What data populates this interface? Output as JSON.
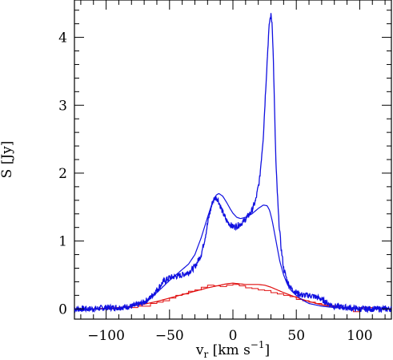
{
  "chart_data": {
    "type": "line",
    "title": "",
    "xlabel": "v_r [km s^-1]",
    "ylabel": "S [Jy]",
    "xlim": [
      -125,
      125
    ],
    "ylim": [
      -0.15,
      4.55
    ],
    "xticks": [
      -100,
      -50,
      0,
      50,
      100
    ],
    "yticks": [
      0,
      1,
      2,
      3,
      4
    ],
    "grid": false,
    "series": [
      {
        "color": "#1010e0",
        "style": "noisy-line",
        "x": [
          -125,
          -110,
          -100,
          -90,
          -80,
          -72,
          -66,
          -60,
          -55,
          -50,
          -45,
          -40,
          -35,
          -30,
          -25,
          -22,
          -19,
          -16,
          -14,
          -12,
          -10,
          -8,
          -5,
          -2,
          0,
          3,
          6,
          9,
          12,
          15,
          18,
          21,
          24,
          26,
          28,
          29,
          30,
          31,
          32,
          33,
          34,
          36,
          38,
          40,
          43,
          46,
          50,
          55,
          60,
          65,
          70,
          75,
          80,
          90,
          100,
          110,
          125
        ],
        "y": [
          0.0,
          0.0,
          0.02,
          0.02,
          0.04,
          0.08,
          0.15,
          0.28,
          0.4,
          0.46,
          0.48,
          0.5,
          0.54,
          0.62,
          0.8,
          1.05,
          1.35,
          1.58,
          1.64,
          1.62,
          1.52,
          1.42,
          1.3,
          1.24,
          1.21,
          1.22,
          1.25,
          1.3,
          1.37,
          1.45,
          1.6,
          1.9,
          2.55,
          3.3,
          4.0,
          4.25,
          4.32,
          4.2,
          3.6,
          2.8,
          2.1,
          1.35,
          0.9,
          0.6,
          0.4,
          0.3,
          0.24,
          0.2,
          0.2,
          0.18,
          0.14,
          0.08,
          0.04,
          0.02,
          0.0,
          0.0,
          0.0
        ]
      },
      {
        "color": "#1010e0",
        "style": "smooth-line",
        "x": [
          -125,
          -100,
          -85,
          -75,
          -70,
          -65,
          -60,
          -55,
          -50,
          -45,
          -40,
          -35,
          -30,
          -25,
          -20,
          -16,
          -13,
          -11,
          -8,
          -5,
          -2,
          0,
          3,
          6,
          10,
          15,
          20,
          24,
          27,
          29,
          31,
          33,
          35,
          37,
          40,
          43,
          46,
          50,
          55,
          60,
          70,
          80,
          90,
          100,
          125
        ],
        "y": [
          0.0,
          0.0,
          0.02,
          0.06,
          0.1,
          0.16,
          0.24,
          0.33,
          0.42,
          0.5,
          0.58,
          0.66,
          0.8,
          1.05,
          1.35,
          1.58,
          1.68,
          1.7,
          1.66,
          1.57,
          1.47,
          1.41,
          1.35,
          1.33,
          1.35,
          1.4,
          1.48,
          1.53,
          1.52,
          1.45,
          1.3,
          1.1,
          0.9,
          0.7,
          0.5,
          0.36,
          0.27,
          0.2,
          0.13,
          0.08,
          0.04,
          0.02,
          0.01,
          0.0,
          0.0
        ]
      },
      {
        "color": "#e01010",
        "style": "smooth-line",
        "x": [
          -125,
          -110,
          -100,
          -90,
          -80,
          -70,
          -60,
          -50,
          -40,
          -30,
          -20,
          -10,
          -5,
          0,
          5,
          10,
          15,
          20,
          25,
          30,
          35,
          40,
          50,
          60,
          70,
          80,
          90,
          100,
          125
        ],
        "y": [
          0.0,
          0.0,
          0.01,
          0.02,
          0.04,
          0.07,
          0.11,
          0.16,
          0.21,
          0.26,
          0.31,
          0.35,
          0.37,
          0.38,
          0.37,
          0.36,
          0.36,
          0.36,
          0.35,
          0.32,
          0.28,
          0.24,
          0.17,
          0.11,
          0.06,
          0.03,
          0.01,
          0.0,
          0.0
        ]
      },
      {
        "color": "#e01010",
        "style": "step",
        "x": [
          -125,
          -110,
          -100,
          -90,
          -80,
          -75,
          -70,
          -65,
          -60,
          -55,
          -50,
          -45,
          -40,
          -35,
          -30,
          -25,
          -20,
          -15,
          -10,
          -5,
          0,
          5,
          10,
          15,
          20,
          25,
          30,
          35,
          40,
          45,
          50,
          55,
          60,
          65,
          70,
          75,
          80,
          85,
          90,
          95,
          100,
          110,
          125
        ],
        "y": [
          0.0,
          0.0,
          0.0,
          0.02,
          0.02,
          0.04,
          0.04,
          0.08,
          0.1,
          0.12,
          0.16,
          0.2,
          0.22,
          0.26,
          0.28,
          0.32,
          0.35,
          0.34,
          0.33,
          0.35,
          0.36,
          0.34,
          0.31,
          0.3,
          0.28,
          0.27,
          0.24,
          0.22,
          0.2,
          0.18,
          0.14,
          0.12,
          0.1,
          0.08,
          0.06,
          0.05,
          0.03,
          0.02,
          0.0,
          -0.04,
          0.02,
          0.0,
          0.0
        ]
      }
    ]
  }
}
